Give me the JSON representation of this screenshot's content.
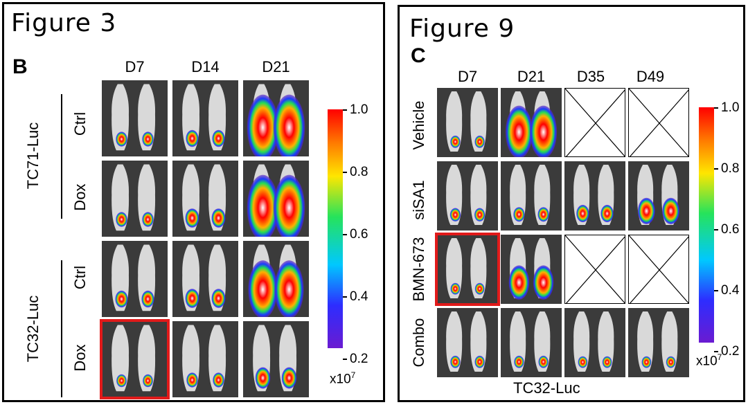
{
  "fig3": {
    "title": "Figure 3",
    "panel_letter": "B",
    "columns": [
      "D7",
      "D14",
      "D21"
    ],
    "groups": [
      "TC71-Luc",
      "TC32-Luc"
    ],
    "rows": [
      "Ctrl",
      "Dox",
      "Ctrl",
      "Dox"
    ],
    "colorbar": {
      "ticks": [
        "1.0",
        "0.8",
        "0.6",
        "0.4",
        "0.2"
      ],
      "unit": "x10",
      "unit_exp": "7"
    },
    "cells": [
      [
        {
          "blob": 0.15
        },
        {
          "blob": 0.2
        },
        {
          "blob": 1.0
        }
      ],
      [
        {
          "blob": 0.15
        },
        {
          "blob": 0.25
        },
        {
          "blob": 1.0
        }
      ],
      [
        {
          "blob": 0.2
        },
        {
          "blob": 0.25
        },
        {
          "blob": 0.9
        }
      ],
      [
        {
          "blob": 0.1
        },
        {
          "blob": 0.15
        },
        {
          "blob": 0.3
        }
      ]
    ],
    "highlight": {
      "row": 3,
      "col": 0
    }
  },
  "fig9": {
    "title": "Figure 9",
    "panel_letter": "C",
    "columns": [
      "D7",
      "D21",
      "D35",
      "D49"
    ],
    "rows": [
      "Vehicle",
      "siSA1",
      "BMN-673",
      "Combo"
    ],
    "footer": "TC32-Luc",
    "colorbar": {
      "ticks": [
        "1.0",
        "0.8",
        "0.6",
        "0.4",
        "0.2"
      ],
      "unit": "x10",
      "unit_exp": "7"
    },
    "cells": [
      [
        {
          "blob": 0.12
        },
        {
          "blob": 0.9
        },
        {
          "empty": true
        },
        {
          "empty": true
        }
      ],
      [
        {
          "blob": 0.15
        },
        {
          "blob": 0.18
        },
        {
          "blob": 0.25
        },
        {
          "blob": 0.45
        }
      ],
      [
        {
          "blob": 0.1
        },
        {
          "blob": 0.6
        },
        {
          "empty": true
        },
        {
          "empty": true
        }
      ],
      [
        {
          "blob": 0.12
        },
        {
          "blob": 0.12
        },
        {
          "blob": 0.1
        },
        {
          "blob": 0.1
        }
      ]
    ],
    "highlight": {
      "row": 2,
      "col": 0
    }
  }
}
